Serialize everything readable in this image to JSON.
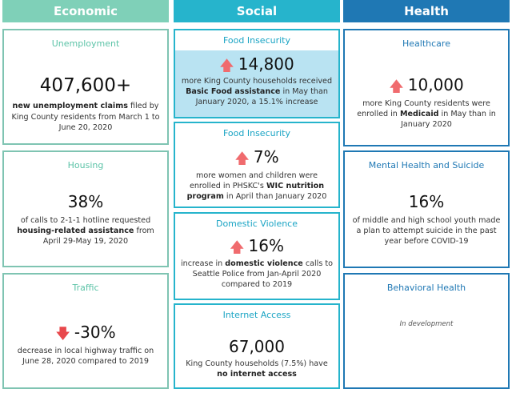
{
  "columns": {
    "economic": {
      "label": "Economic",
      "color": "#7fd0b8"
    },
    "social": {
      "label": "Social",
      "color": "#26b4cc"
    },
    "health": {
      "label": "Health",
      "color": "#1f78b4"
    }
  },
  "economic": {
    "unemployment": {
      "title": "Unemployment",
      "value": "407,600+",
      "desc_bold": "new unemployment claims",
      "desc_rest": " filed by King County residents from March 1 to June 20, 2020"
    },
    "housing": {
      "title": "Housing",
      "value": "38%",
      "desc_pre": "of calls to 2-1-1 hotline requested ",
      "desc_bold": "housing-related assistance",
      "desc_post": " from April 29-May 19, 2020"
    },
    "traffic": {
      "title": "Traffic",
      "value": "-30%",
      "arrow": "down",
      "desc": "decrease in local highway traffic on June 28, 2020 compared to 2019"
    }
  },
  "social": {
    "food1": {
      "title": "Food Insecurity",
      "value": "14,800",
      "arrow": "up",
      "desc_pre": "more King County households received ",
      "desc_bold": "Basic Food assistance",
      "desc_post": " in May than January 2020, a 15.1% increase",
      "highlight": "#b9e3f2"
    },
    "food2": {
      "title": "Food Insecurity",
      "value": "7%",
      "arrow": "up",
      "desc_pre": "more women and children were enrolled in PHSKC's ",
      "desc_bold": "WIC nutrition program",
      "desc_post": " in April than January 2020"
    },
    "dv": {
      "title": "Domestic Violence",
      "value": "16%",
      "arrow": "up",
      "desc_pre": "increase in ",
      "desc_bold": "domestic violence",
      "desc_post": " calls to Seattle Police from Jan-April 2020 compared to 2019"
    },
    "internet": {
      "title": "Internet Access",
      "value": "67,000",
      "desc_pre": "King County households (7.5%) have ",
      "desc_bold": "no internet access",
      "desc_post": ""
    }
  },
  "health": {
    "healthcare": {
      "title": "Healthcare",
      "value": "10,000",
      "arrow": "up",
      "desc_pre": "more King County residents were enrolled in ",
      "desc_bold": "Medicaid",
      "desc_post": " in May than in January 2020"
    },
    "mental": {
      "title": "Mental Health and Suicide",
      "value": "16%",
      "desc": "of middle and high school youth made a plan to attempt suicide in the past year before COVID-19"
    },
    "behavioral": {
      "title": "Behavioral Health",
      "status": "In development"
    }
  }
}
